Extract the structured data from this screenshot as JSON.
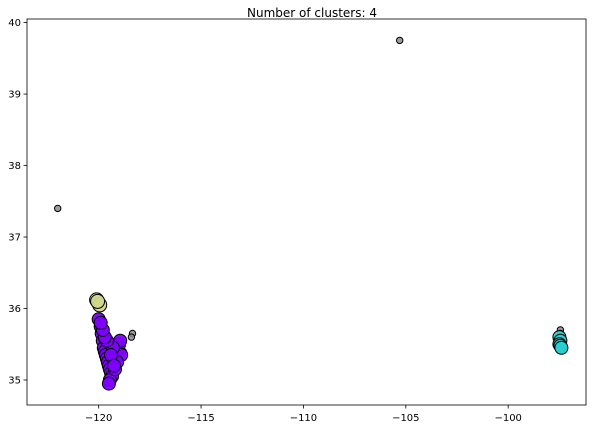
{
  "chart_data": {
    "type": "scatter",
    "title": "Number of clusters: 4",
    "xlabel": "",
    "ylabel": "",
    "xlim": [
      -123.5,
      -96.2
    ],
    "ylim": [
      34.65,
      40.05
    ],
    "xticks": [
      -120,
      -115,
      -110,
      -105,
      -100
    ],
    "xtick_labels": [
      "−120",
      "−115",
      "−110",
      "−105",
      "−100"
    ],
    "yticks": [
      35,
      36,
      37,
      38,
      39,
      40
    ],
    "ytick_labels": [
      "35",
      "36",
      "37",
      "38",
      "39",
      "40"
    ],
    "grid": false,
    "colors": {
      "cluster_purple": "#7f00ff",
      "cluster_cyan": "#2ad0d0",
      "cluster_yellow": "#cfd78c",
      "noise": "#8c8c8c",
      "edge": "#000000"
    },
    "series": [
      {
        "color": "cluster_purple",
        "points": [
          [
            -120.0,
            35.85
          ],
          [
            -119.9,
            35.75
          ],
          [
            -119.85,
            35.65
          ],
          [
            -119.8,
            35.55
          ],
          [
            -119.75,
            35.45
          ],
          [
            -119.7,
            35.4
          ],
          [
            -119.65,
            35.35
          ],
          [
            -119.6,
            35.3
          ],
          [
            -119.55,
            35.25
          ],
          [
            -119.5,
            35.2
          ],
          [
            -119.45,
            35.15
          ],
          [
            -119.4,
            35.1
          ],
          [
            -119.35,
            35.05
          ],
          [
            -119.45,
            35.0
          ],
          [
            -119.5,
            34.95
          ],
          [
            -119.3,
            35.3
          ],
          [
            -119.2,
            35.35
          ],
          [
            -119.1,
            35.4
          ],
          [
            -119.0,
            35.5
          ],
          [
            -118.95,
            35.55
          ],
          [
            -118.9,
            35.35
          ],
          [
            -119.1,
            35.25
          ],
          [
            -119.2,
            35.15
          ],
          [
            -119.3,
            35.45
          ],
          [
            -119.6,
            35.55
          ],
          [
            -119.7,
            35.6
          ],
          [
            -119.8,
            35.7
          ],
          [
            -119.9,
            35.8
          ],
          [
            -119.4,
            35.35
          ],
          [
            -119.25,
            35.2
          ]
        ]
      },
      {
        "color": "cluster_cyan",
        "points": [
          [
            -97.5,
            35.6
          ],
          [
            -97.45,
            35.55
          ],
          [
            -97.5,
            35.5
          ],
          [
            -97.45,
            35.48
          ],
          [
            -97.4,
            35.45
          ]
        ]
      },
      {
        "color": "cluster_yellow",
        "points": [
          [
            -120.1,
            36.12
          ],
          [
            -119.95,
            36.05
          ],
          [
            -120.05,
            36.1
          ]
        ]
      },
      {
        "color": "noise",
        "points": [
          [
            -105.3,
            39.75
          ],
          [
            -122.0,
            37.4
          ],
          [
            -118.35,
            35.65
          ],
          [
            -118.4,
            35.6
          ],
          [
            -97.45,
            35.7
          ],
          [
            -97.45,
            35.65
          ],
          [
            -119.05,
            35.5
          ],
          [
            -119.3,
            35.15
          ],
          [
            -119.6,
            34.95
          ],
          [
            -118.8,
            35.4
          ]
        ]
      }
    ]
  }
}
